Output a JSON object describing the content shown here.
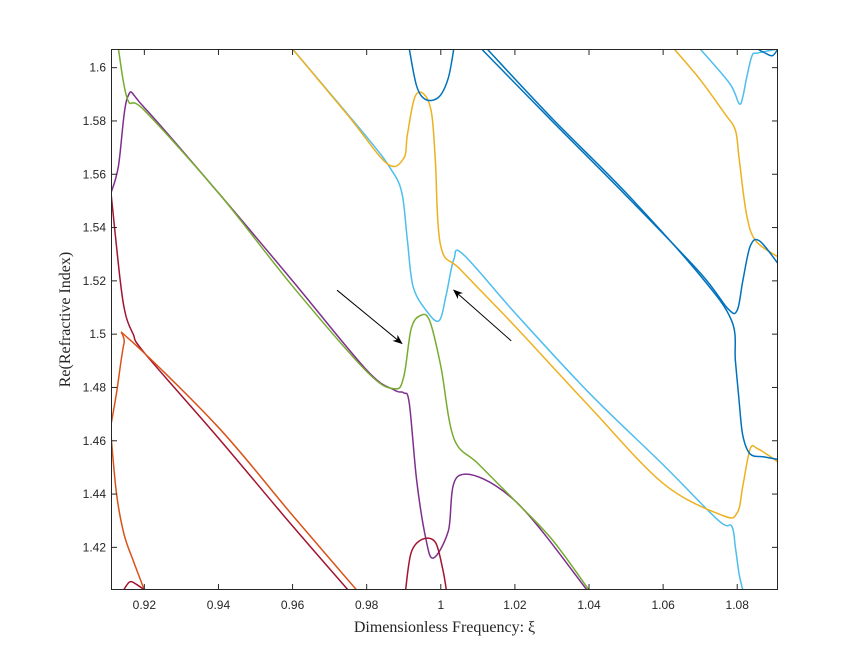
{
  "chart_data": {
    "type": "line",
    "title": "",
    "xlabel": "Dimensionless Frequency: ξ",
    "ylabel": "Re(Refractive Index)",
    "xlim": [
      0.911,
      1.091
    ],
    "ylim": [
      1.404,
      1.607
    ],
    "xticks": [
      "0.92",
      "0.94",
      "0.96",
      "0.98",
      "1",
      "1.02",
      "1.04",
      "1.06",
      "1.08"
    ],
    "xtick_values": [
      0.92,
      0.94,
      0.96,
      0.98,
      1.0,
      1.02,
      1.04,
      1.06,
      1.08
    ],
    "yticks": [
      "1.42",
      "1.44",
      "1.46",
      "1.48",
      "1.5",
      "1.52",
      "1.54",
      "1.56",
      "1.58",
      "1.6"
    ],
    "ytick_values": [
      1.42,
      1.44,
      1.46,
      1.48,
      1.5,
      1.52,
      1.54,
      1.56,
      1.58,
      1.6
    ],
    "grid": false,
    "annotations": [
      {
        "type": "arrow",
        "from": [
          0.972,
          1.5165
        ],
        "to": [
          0.9895,
          1.4965
        ]
      },
      {
        "type": "arrow",
        "from": [
          1.019,
          1.4975
        ],
        "to": [
          1.0035,
          1.5165
        ]
      }
    ],
    "series": [
      {
        "color": "#A2142F",
        "x": [
          0.911,
          0.9135,
          0.915,
          0.917,
          0.92,
          0.94,
          0.96,
          0.98
        ],
        "y": [
          1.553,
          1.52,
          1.507,
          1.5,
          1.493,
          1.461,
          1.428,
          1.396
        ]
      },
      {
        "color": "#D95319",
        "x": [
          0.911,
          0.9125,
          0.9145,
          0.916,
          0.94,
          0.96,
          0.981
        ],
        "y": [
          1.466,
          1.478,
          1.4965,
          1.498,
          1.465,
          1.432,
          1.398
        ]
      },
      {
        "color": "#D95319",
        "x": [
          0.911,
          0.9125,
          0.9145,
          0.917,
          0.92
        ],
        "y": [
          1.462,
          1.44,
          1.425,
          1.415,
          1.404
        ]
      },
      {
        "color": "#A2142F",
        "x": [
          0.914,
          0.916,
          0.918,
          0.921
        ],
        "y": [
          1.403,
          1.407,
          1.406,
          1.403
        ]
      },
      {
        "color": "#7E2F8E",
        "x": [
          0.911,
          0.913,
          0.9155,
          0.92,
          0.94,
          0.96,
          0.98,
          0.9875,
          0.99,
          0.9915,
          0.9935,
          0.996,
          0.998,
          1.002,
          1.005,
          1.02,
          1.04
        ],
        "y": [
          1.553,
          1.563,
          1.589,
          1.585,
          1.553,
          1.52,
          1.4865,
          1.479,
          1.478,
          1.474,
          1.445,
          1.423,
          1.416,
          1.426,
          1.447,
          1.4375,
          1.403
        ]
      },
      {
        "color": "#77AC30",
        "x": [
          0.913,
          0.9155,
          0.92,
          0.94,
          0.96,
          0.98,
          0.9875,
          0.99,
          0.992,
          0.9945,
          0.997,
          1.0,
          1.0035,
          1.01,
          1.02,
          1.03,
          1.04
        ],
        "y": [
          1.607,
          1.588,
          1.584,
          1.553,
          1.518,
          1.486,
          1.4795,
          1.484,
          1.502,
          1.507,
          1.505,
          1.488,
          1.461,
          1.4515,
          1.4375,
          1.423,
          1.404
        ]
      },
      {
        "color": "#A2142F",
        "x": [
          0.9905,
          0.992,
          0.995,
          0.9985,
          1.0005,
          1.0015
        ],
        "y": [
          1.404,
          1.418,
          1.423,
          1.422,
          1.412,
          1.404
        ]
      },
      {
        "color": "#4DBEEE",
        "x": [
          0.96,
          0.98,
          0.9865,
          0.9895,
          0.991,
          0.9925,
          0.996,
          0.9995,
          1.0015,
          1.0035,
          1.006,
          1.02,
          1.04,
          1.06,
          1.075,
          1.0785,
          1.0795,
          1.0805,
          1.0815
        ],
        "y": [
          1.607,
          1.574,
          1.562,
          1.553,
          1.535,
          1.518,
          1.509,
          1.505,
          1.515,
          1.528,
          1.53,
          1.508,
          1.478,
          1.451,
          1.43,
          1.428,
          1.42,
          1.41,
          1.404
        ]
      },
      {
        "color": "#EDB120",
        "x": [
          0.96,
          0.975,
          0.9855,
          0.99,
          0.991,
          0.993,
          0.9955,
          0.9975,
          0.9985,
          1.0,
          1.0055,
          1.02,
          1.04,
          1.06,
          1.076,
          1.08,
          1.0815,
          1.0835,
          1.0855,
          1.089,
          1.091
        ],
        "y": [
          1.607,
          1.582,
          1.564,
          1.566,
          1.575,
          1.589,
          1.59,
          1.583,
          1.566,
          1.533,
          1.524,
          1.503,
          1.473,
          1.444,
          1.432,
          1.433,
          1.443,
          1.457,
          1.457,
          1.454,
          1.452
        ]
      },
      {
        "color": "#EDB120",
        "x": [
          1.063,
          1.07,
          1.0765,
          1.0795,
          1.0805,
          1.0825,
          1.085,
          1.091
        ],
        "y": [
          1.607,
          1.5955,
          1.583,
          1.5765,
          1.566,
          1.545,
          1.535,
          1.529
        ]
      },
      {
        "color": "#4DBEEE",
        "x": [
          1.07,
          1.078,
          1.0805,
          1.0815,
          1.0825,
          1.084,
          1.0855,
          1.091
        ],
        "y": [
          1.607,
          1.594,
          1.5865,
          1.589,
          1.596,
          1.6045,
          1.6055,
          1.607
        ]
      },
      {
        "color": "#0072BD",
        "x": [
          0.9915,
          0.9935,
          0.996,
          0.9995,
          1.002,
          1.0035
        ],
        "y": [
          1.607,
          1.593,
          1.588,
          1.589,
          1.596,
          1.607
        ]
      },
      {
        "color": "#0072BD",
        "x": [
          1.011,
          1.03,
          1.05,
          1.07,
          1.0775,
          1.08,
          1.0815,
          1.0835,
          1.086,
          1.091
        ],
        "y": [
          1.607,
          1.58,
          1.552,
          1.523,
          1.5095,
          1.509,
          1.52,
          1.533,
          1.535,
          1.5265
        ]
      },
      {
        "color": "#0072BD",
        "x": [
          1.0125,
          1.03,
          1.05,
          1.07,
          1.0785,
          1.0795,
          1.0805,
          1.0815,
          1.0835,
          1.087,
          1.091
        ],
        "y": [
          1.607,
          1.581,
          1.553,
          1.522,
          1.505,
          1.49,
          1.475,
          1.462,
          1.455,
          1.454,
          1.453
        ]
      },
      {
        "color": "#0072BD",
        "x": [
          1.0855,
          1.0875,
          1.0895,
          1.091
        ],
        "y": [
          1.607,
          1.6055,
          1.6045,
          1.607
        ]
      }
    ]
  }
}
